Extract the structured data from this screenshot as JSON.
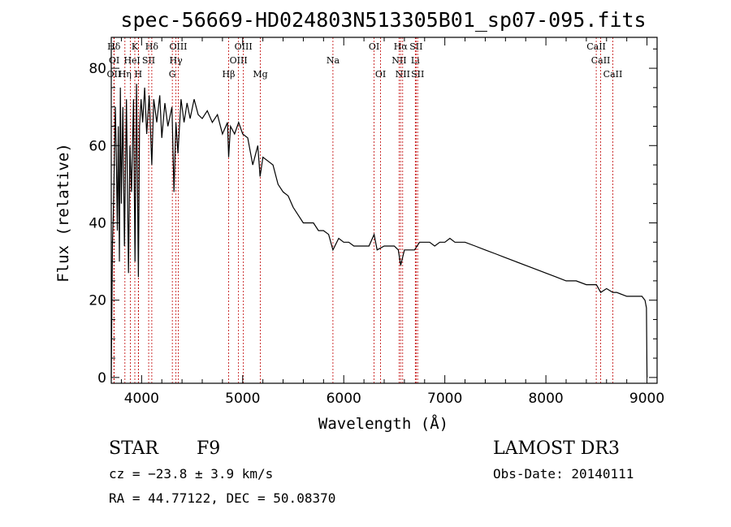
{
  "chart_data": {
    "type": "line",
    "title": "spec-56669-HD024803N513305B01_sp07-095.fits",
    "xlabel": "Wavelength (Å)",
    "ylabel": "Flux (relative)",
    "xlim": [
      3700,
      9100
    ],
    "ylim": [
      -1.5,
      88
    ],
    "xticks": [
      4000,
      5000,
      6000,
      7000,
      8000,
      9000
    ],
    "yticks": [
      0,
      20,
      40,
      60,
      80
    ],
    "series": [
      {
        "name": "flux",
        "x": [
          3700,
          3705,
          3712,
          3720,
          3730,
          3740,
          3750,
          3760,
          3770,
          3780,
          3790,
          3800,
          3815,
          3830,
          3850,
          3870,
          3885,
          3900,
          3920,
          3935,
          3950,
          3968,
          3980,
          3995,
          4010,
          4030,
          4050,
          4075,
          4101,
          4120,
          4150,
          4180,
          4200,
          4230,
          4260,
          4300,
          4320,
          4340,
          4360,
          4390,
          4420,
          4450,
          4480,
          4520,
          4560,
          4600,
          4650,
          4700,
          4750,
          4800,
          4850,
          4861,
          4880,
          4920,
          4960,
          5000,
          5050,
          5100,
          5150,
          5172,
          5200,
          5250,
          5300,
          5350,
          5400,
          5450,
          5500,
          5550,
          5600,
          5650,
          5700,
          5750,
          5800,
          5850,
          5893,
          5950,
          6000,
          6050,
          6100,
          6150,
          6200,
          6250,
          6300,
          6330,
          6400,
          6450,
          6500,
          6540,
          6563,
          6600,
          6650,
          6700,
          6750,
          6800,
          6850,
          6900,
          6950,
          7000,
          7050,
          7100,
          7150,
          7200,
          7300,
          7400,
          7500,
          7600,
          7700,
          7800,
          7900,
          8000,
          8100,
          8200,
          8300,
          8400,
          8500,
          8542,
          8600,
          8662,
          8700,
          8800,
          8900,
          8950,
          8980,
          8995,
          9000
        ],
        "y": [
          0,
          15,
          35,
          42,
          55,
          70,
          58,
          38,
          65,
          30,
          75,
          45,
          70,
          34,
          72,
          27,
          60,
          48,
          72,
          30,
          76,
          26,
          65,
          72,
          66,
          75,
          63,
          73,
          55,
          72,
          66,
          73,
          62,
          71,
          65,
          70,
          48,
          66,
          58,
          72,
          66,
          71,
          67,
          72,
          68,
          67,
          69,
          66,
          68,
          63,
          66,
          57,
          65,
          63,
          66,
          63,
          62,
          55,
          60,
          52,
          57,
          56,
          55,
          50,
          48,
          47,
          44,
          42,
          40,
          40,
          40,
          38,
          38,
          37,
          33,
          36,
          35,
          35,
          34,
          34,
          34,
          34,
          37,
          33,
          34,
          34,
          34,
          33,
          29,
          33,
          33,
          33,
          35,
          35,
          35,
          34,
          35,
          35,
          36,
          35,
          35,
          35,
          34,
          33,
          32,
          31,
          30,
          29,
          28,
          27,
          26,
          25,
          25,
          24,
          24,
          22,
          23,
          22,
          22,
          21,
          21,
          21,
          20,
          18,
          0
        ]
      }
    ],
    "lines": [
      {
        "label": "Hδ",
        "x": 3726,
        "row": 0
      },
      {
        "label": "OI",
        "x": 3729,
        "row": 1
      },
      {
        "label": "OII",
        "x": 3727,
        "row": 2
      },
      {
        "label": "He",
        "x": 3889,
        "row": 1
      },
      {
        "label": "Hη",
        "x": 3835,
        "row": 2
      },
      {
        "label": "K",
        "x": 3933,
        "row": 0
      },
      {
        "label": "I",
        "x": 3970,
        "row": 1
      },
      {
        "label": "H",
        "x": 3968,
        "row": 2
      },
      {
        "label": "Hδ",
        "x": 4101,
        "row": 0
      },
      {
        "label": "SII",
        "x": 4070,
        "row": 1
      },
      {
        "label": "OIII",
        "x": 4363,
        "row": 0
      },
      {
        "label": "Hγ",
        "x": 4340,
        "row": 1
      },
      {
        "label": "G",
        "x": 4304,
        "row": 2
      },
      {
        "label": "Hβ",
        "x": 4861,
        "row": 2
      },
      {
        "label": "OIII",
        "x": 5007,
        "row": 0
      },
      {
        "label": "OIII",
        "x": 4959,
        "row": 1
      },
      {
        "label": "Mg",
        "x": 5175,
        "row": 2
      },
      {
        "label": "Na",
        "x": 5893,
        "row": 1
      },
      {
        "label": "OI",
        "x": 6300,
        "row": 0
      },
      {
        "label": "OI",
        "x": 6364,
        "row": 2
      },
      {
        "label": "Hα",
        "x": 6563,
        "row": 0
      },
      {
        "label": "SII",
        "x": 6716,
        "row": 0
      },
      {
        "label": "NII",
        "x": 6548,
        "row": 1
      },
      {
        "label": "Li",
        "x": 6708,
        "row": 1
      },
      {
        "label": "NII",
        "x": 6583,
        "row": 2
      },
      {
        "label": "SII",
        "x": 6731,
        "row": 2
      },
      {
        "label": "CaII",
        "x": 8498,
        "row": 0
      },
      {
        "label": "CaII",
        "x": 8542,
        "row": 1
      },
      {
        "label": "CaII",
        "x": 8662,
        "row": 2
      }
    ]
  },
  "info": {
    "class": "STAR",
    "subclass": "F9",
    "survey": "LAMOST DR3",
    "cz": "cz = −23.8 ± 3.9 km/s",
    "obs_date": "Obs-Date: 20140111",
    "coords": "RA =  44.77122, DEC =  50.08370"
  },
  "colors": {
    "axis": "#000000",
    "spectrum": "#000000",
    "lines": "#c00000"
  }
}
